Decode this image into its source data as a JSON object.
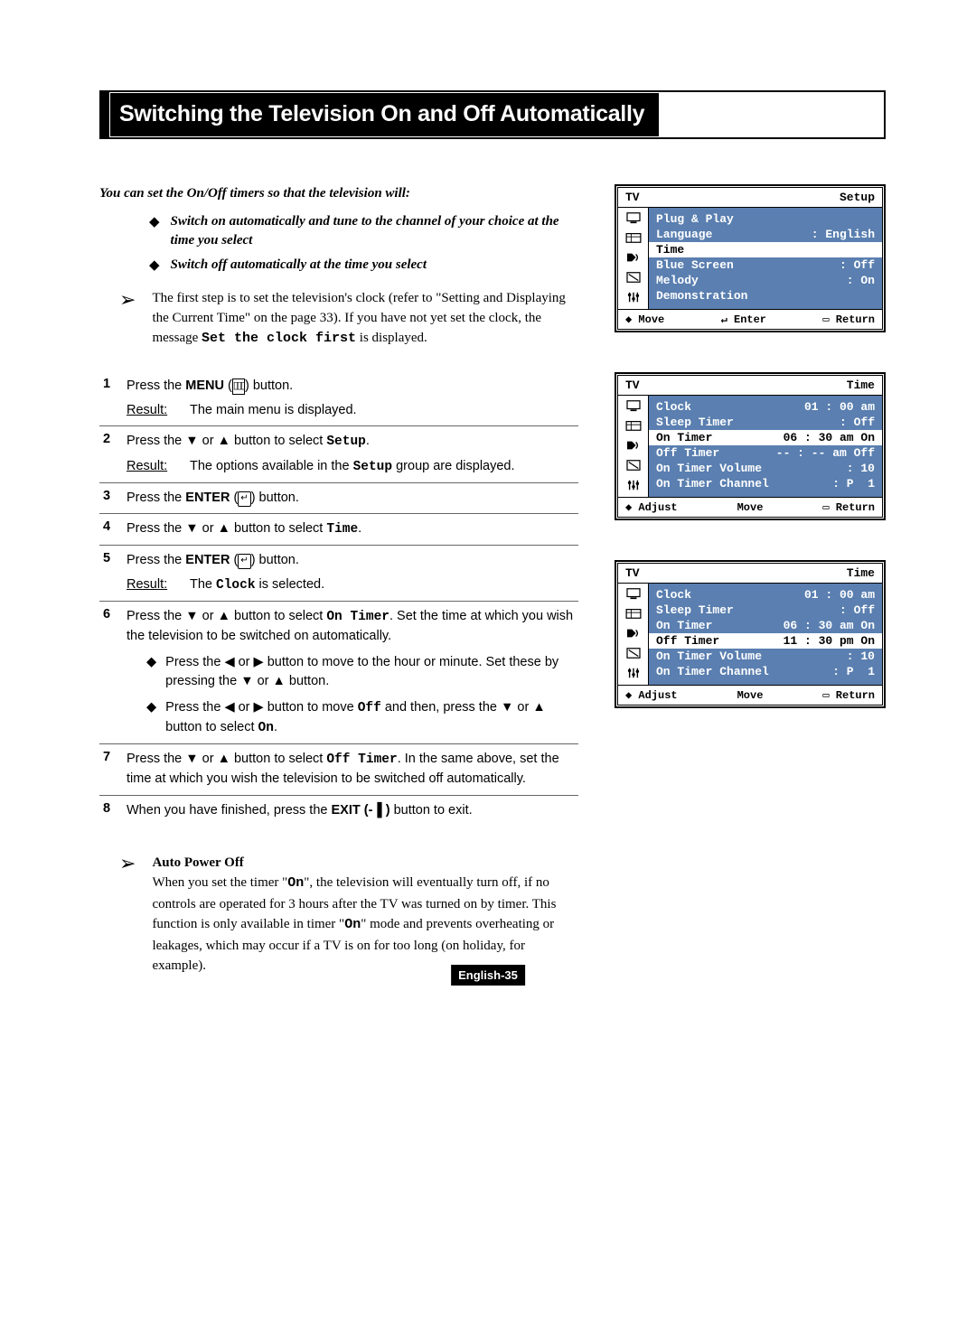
{
  "title": "Switching the Television On and Off Automatically",
  "intro": "You can set the On/Off timers so that the television will:",
  "intro_bullets": [
    "Switch on automatically and tune to the channel of your choice at the time you select",
    "Switch off automatically at the time you select"
  ],
  "note_prefix": "The first step is to set the television's clock (refer to \"Setting and Displaying the Current Time\" on the page 33). If you have not yet set the clock, the message ",
  "note_mono": "Set the clock first",
  "note_suffix": " is displayed.",
  "steps": [
    {
      "n": "1",
      "body_html": "Press the <b>MENU</b> (<span class='menu-icon'>▯▯▯</span>) button.",
      "result": "The main menu is displayed."
    },
    {
      "n": "2",
      "body_html": "Press the <span class='arrow'>▼</span> or <span class='arrow'>▲</span> button to select <span class='mono'>Setup</span>.",
      "result_html": "The options available in the <span class='mono'>Setup</span> group are displayed."
    },
    {
      "n": "3",
      "body_html": "Press the <b>ENTER</b> (<span class='enter-icon'>↵</span>) button."
    },
    {
      "n": "4",
      "body_html": "Press the <span class='arrow'>▼</span> or <span class='arrow'>▲</span> button to select <span class='mono'>Time</span>."
    },
    {
      "n": "5",
      "body_html": "Press the <b>ENTER</b> (<span class='enter-icon'>↵</span>) button.",
      "result_html": "The <span class='mono'>Clock</span> is selected."
    },
    {
      "n": "6",
      "body_html": "Press the <span class='arrow'>▼</span> or <span class='arrow'>▲</span> button to select <span class='mono'>On Timer</span>. Set the time at which you wish the television to be switched on automatically.",
      "subs": [
        "Press the <span class='arrow'>◀</span> or <span class='arrow'>▶</span> button to move to the hour or minute. Set these by pressing the <span class='arrow'>▼</span> or <span class='arrow'>▲</span> button.",
        "Press the <span class='arrow'>◀</span> or <span class='arrow'>▶</span> button to move <span class='mono'>Off</span> and then, press the <span class='arrow'>▼</span> or <span class='arrow'>▲</span> button to select <span class='mono'>On</span>."
      ]
    },
    {
      "n": "7",
      "body_html": "Press the <span class='arrow'>▼</span> or <span class='arrow'>▲</span> button to select <span class='mono'>Off Timer</span>. In the same above, set the time at which you wish the television to be switched off automatically."
    },
    {
      "n": "8",
      "body_html": "When you have finished, press the <b>EXIT (<span style='font-family:Arial'>-▐</span> )</b> button to exit.",
      "noborder": true
    }
  ],
  "auto_power": {
    "title": "Auto Power Off",
    "body_html": "When you set the timer \"<span class='mono'>On</span>\", the television will eventually turn off, if no controls are operated for 3 hours after the TV was turned on by timer. This function is only available in timer \"<span class='mono'>On</span>\" mode and prevents overheating or leakages, which may occur if a TV is on for too long (on holiday, for example)."
  },
  "osd_panels": [
    {
      "header_left": "TV",
      "header_right": "Setup",
      "rows": [
        {
          "l": "Plug & Play",
          "r": ""
        },
        {
          "l": "Language",
          "r": ": English"
        },
        {
          "l": "Time",
          "r": "",
          "sel": true
        },
        {
          "l": "Blue Screen",
          "r": ": Off"
        },
        {
          "l": "Melody",
          "r": ": On"
        },
        {
          "l": "Demonstration",
          "r": ""
        }
      ],
      "footer": [
        "◆ Move",
        "↵ Enter",
        "▭ Return"
      ]
    },
    {
      "header_left": "TV",
      "header_right": "Time",
      "rows": [
        {
          "l": "Clock",
          "r": "01 : 00 am"
        },
        {
          "l": "Sleep Timer",
          "r": ": Off"
        },
        {
          "l": "On Timer",
          "r": "06 : 30 am On",
          "sel": true
        },
        {
          "l": "Off Timer",
          "r": "-- : -- am Off"
        },
        {
          "l": "On Timer Volume",
          "r": ": 10"
        },
        {
          "l": "On Timer Channel",
          "r": ": P  1"
        }
      ],
      "footer": [
        "◆ Adjust",
        "Move",
        "▭ Return"
      ]
    },
    {
      "header_left": "TV",
      "header_right": "Time",
      "rows": [
        {
          "l": "Clock",
          "r": "01 : 00 am"
        },
        {
          "l": "Sleep Timer",
          "r": ": Off"
        },
        {
          "l": "On Timer",
          "r": "06 : 30 am On"
        },
        {
          "l": "Off Timer",
          "r": "11 : 30 pm On",
          "sel": true
        },
        {
          "l": "On Timer Volume",
          "r": ": 10"
        },
        {
          "l": "On Timer Channel",
          "r": ": P  1"
        }
      ],
      "footer": [
        "◆ Adjust",
        "Move",
        "▭ Return"
      ]
    }
  ],
  "page_number": "English-35",
  "colors": {
    "osd_bg": "#5a7fb0",
    "osd_fg": "#ffffff",
    "black": "#000000",
    "white": "#ffffff"
  }
}
